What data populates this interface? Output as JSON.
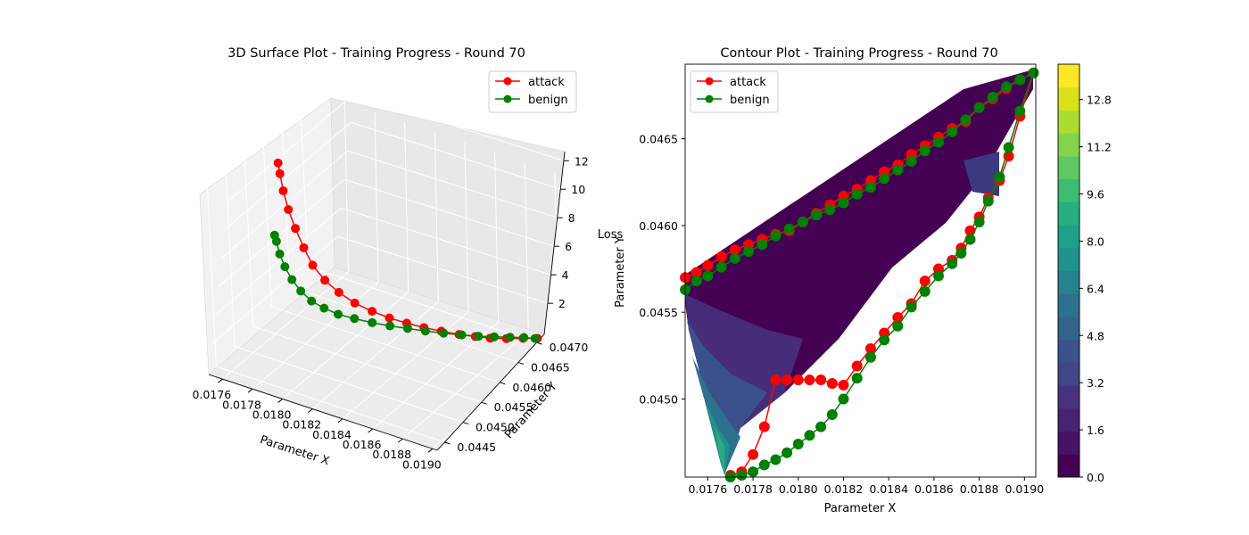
{
  "chart_data": [
    {
      "type": "line",
      "title": "3D Surface Plot - Training Progress - Round 70",
      "xlabel": "Parameter X",
      "ylabel": "Parameter Y",
      "zlabel": "Loss",
      "x_ticks": [
        "0.0176",
        "0.0178",
        "0.0180",
        "0.0182",
        "0.0184",
        "0.0186",
        "0.0188",
        "0.0190"
      ],
      "y_ticks": [
        "0.0445",
        "0.0450",
        "0.0455",
        "0.0460",
        "0.0465",
        "0.0470"
      ],
      "z_ticks": [
        "2",
        "4",
        "6",
        "8",
        "10",
        "12"
      ],
      "legend_position": "top-right",
      "series": [
        {
          "name": "attack",
          "color": "#ff0000",
          "x": [
            0.01751,
            0.01752,
            0.01754,
            0.01757,
            0.01761,
            0.01766,
            0.01771,
            0.01778,
            0.01786,
            0.01795,
            0.01805,
            0.01815,
            0.01825,
            0.01835,
            0.01845,
            0.01855,
            0.01864,
            0.01872,
            0.0188,
            0.01888,
            0.01895
          ],
          "y": [
            0.0457,
            0.04571,
            0.04572,
            0.04574,
            0.04577,
            0.0458,
            0.04584,
            0.04589,
            0.04595,
            0.04602,
            0.04609,
            0.04616,
            0.04623,
            0.0463,
            0.04637,
            0.04645,
            0.04653,
            0.04661,
            0.04672,
            0.04684,
            0.04694
          ],
          "z": [
            10.8,
            10.1,
            9.0,
            7.8,
            6.6,
            5.4,
            4.3,
            3.4,
            2.7,
            2.1,
            1.7,
            1.4,
            1.2,
            1.05,
            0.95,
            0.85,
            0.8,
            0.75,
            0.7,
            0.68,
            0.65
          ]
        },
        {
          "name": "benign",
          "color": "#008000",
          "x": [
            0.01751,
            0.01752,
            0.01754,
            0.01757,
            0.01761,
            0.01766,
            0.01772,
            0.01779,
            0.01787,
            0.01796,
            0.01806,
            0.01816,
            0.01826,
            0.01836,
            0.01846,
            0.01856,
            0.01865,
            0.01873,
            0.01881,
            0.01888,
            0.01894
          ],
          "y": [
            0.04562,
            0.04563,
            0.04564,
            0.04566,
            0.04569,
            0.04573,
            0.04578,
            0.04584,
            0.0459,
            0.04598,
            0.04606,
            0.04614,
            0.04622,
            0.0463,
            0.04639,
            0.04648,
            0.04657,
            0.04667,
            0.04677,
            0.04686,
            0.04692
          ],
          "z": [
            6.2,
            5.8,
            5.0,
            4.2,
            3.4,
            2.7,
            2.1,
            1.7,
            1.4,
            1.2,
            1.05,
            0.95,
            0.9,
            0.85,
            0.8,
            0.78,
            0.75,
            0.72,
            0.7,
            0.68,
            0.66
          ]
        }
      ]
    },
    {
      "type": "scatter",
      "title": "Contour Plot - Training Progress - Round 70",
      "xlabel": "Parameter X",
      "ylabel": "Parameter Y",
      "xlim": [
        0.0175,
        0.01905
      ],
      "ylim": [
        0.04455,
        0.04693
      ],
      "x_ticks": [
        0.0176,
        0.0178,
        0.018,
        0.0182,
        0.0184,
        0.0186,
        0.0188,
        0.019
      ],
      "y_ticks": [
        0.045,
        0.0455,
        0.046,
        0.0465
      ],
      "tick_labels_x": [
        "0.0176",
        "0.0178",
        "0.0180",
        "0.0182",
        "0.0184",
        "0.0186",
        "0.0188",
        "0.0190"
      ],
      "tick_labels_y": [
        "0.0450",
        "0.0455",
        "0.0460",
        "0.0465"
      ],
      "colorbar_ticks": [
        "0.0",
        "1.6",
        "3.2",
        "4.8",
        "6.4",
        "8.0",
        "9.6",
        "11.2",
        "12.8"
      ],
      "colorbar_range": [
        0,
        14
      ],
      "legend_position": "top-left",
      "series": [
        {
          "name": "attack",
          "color": "#ff0000",
          "x": [
            0.0175,
            0.01755,
            0.0176,
            0.01766,
            0.01772,
            0.01778,
            0.01784,
            0.0179,
            0.01796,
            0.01802,
            0.01808,
            0.01814,
            0.0182,
            0.01826,
            0.01832,
            0.01838,
            0.01844,
            0.0185,
            0.01856,
            0.01862,
            0.01868,
            0.01874,
            0.0188,
            0.01886,
            0.01892,
            0.01898,
            0.01904,
            0.01898,
            0.01893,
            0.01889,
            0.01884,
            0.0188,
            0.01876,
            0.01872,
            0.01868,
            0.01862,
            0.01856,
            0.0185,
            0.01844,
            0.01838,
            0.01832,
            0.01826,
            0.0182,
            0.01815,
            0.0181,
            0.01805,
            0.018,
            0.01795,
            0.0179,
            0.01785,
            0.0178,
            0.01775,
            0.0177
          ],
          "y": [
            0.0457,
            0.04573,
            0.04577,
            0.04582,
            0.04586,
            0.04589,
            0.04592,
            0.04595,
            0.04597,
            0.04602,
            0.04607,
            0.04612,
            0.04617,
            0.04621,
            0.04626,
            0.04631,
            0.04635,
            0.04641,
            0.04646,
            0.04651,
            0.04656,
            0.0466,
            0.04668,
            0.04673,
            0.04679,
            0.04684,
            0.04688,
            0.04663,
            0.0464,
            0.04626,
            0.04616,
            0.04605,
            0.04597,
            0.04587,
            0.0458,
            0.04575,
            0.04568,
            0.04555,
            0.04547,
            0.04538,
            0.04529,
            0.04519,
            0.04508,
            0.04509,
            0.04511,
            0.04511,
            0.04511,
            0.04511,
            0.04511,
            0.04484,
            0.04468,
            0.04458,
            0.04456
          ]
        },
        {
          "name": "benign",
          "color": "#008000",
          "x": [
            0.0175,
            0.01755,
            0.0176,
            0.01766,
            0.01772,
            0.01778,
            0.01784,
            0.0179,
            0.01796,
            0.01802,
            0.01808,
            0.01814,
            0.0182,
            0.01826,
            0.01832,
            0.01838,
            0.01844,
            0.0185,
            0.01856,
            0.01862,
            0.01868,
            0.01874,
            0.0188,
            0.01886,
            0.01892,
            0.01898,
            0.01904,
            0.01898,
            0.01893,
            0.01889,
            0.01884,
            0.0188,
            0.01876,
            0.01872,
            0.01868,
            0.01862,
            0.01856,
            0.0185,
            0.01844,
            0.01838,
            0.01832,
            0.01826,
            0.0182,
            0.01815,
            0.0181,
            0.01805,
            0.018,
            0.01795,
            0.0179,
            0.01785,
            0.0178,
            0.01775,
            0.0177
          ],
          "y": [
            0.04563,
            0.04568,
            0.04571,
            0.04576,
            0.04581,
            0.04585,
            0.04589,
            0.04594,
            0.04598,
            0.04602,
            0.04606,
            0.04609,
            0.04613,
            0.04618,
            0.04622,
            0.04627,
            0.04632,
            0.04637,
            0.04643,
            0.04648,
            0.04654,
            0.04661,
            0.04668,
            0.04674,
            0.0468,
            0.04684,
            0.04688,
            0.04666,
            0.04645,
            0.04628,
            0.04614,
            0.04602,
            0.04592,
            0.04584,
            0.04578,
            0.04571,
            0.04562,
            0.04553,
            0.04542,
            0.04534,
            0.04524,
            0.04512,
            0.045,
            0.04491,
            0.04484,
            0.04479,
            0.04474,
            0.04469,
            0.04465,
            0.04462,
            0.04458,
            0.04456,
            0.04455
          ]
        }
      ]
    }
  ]
}
